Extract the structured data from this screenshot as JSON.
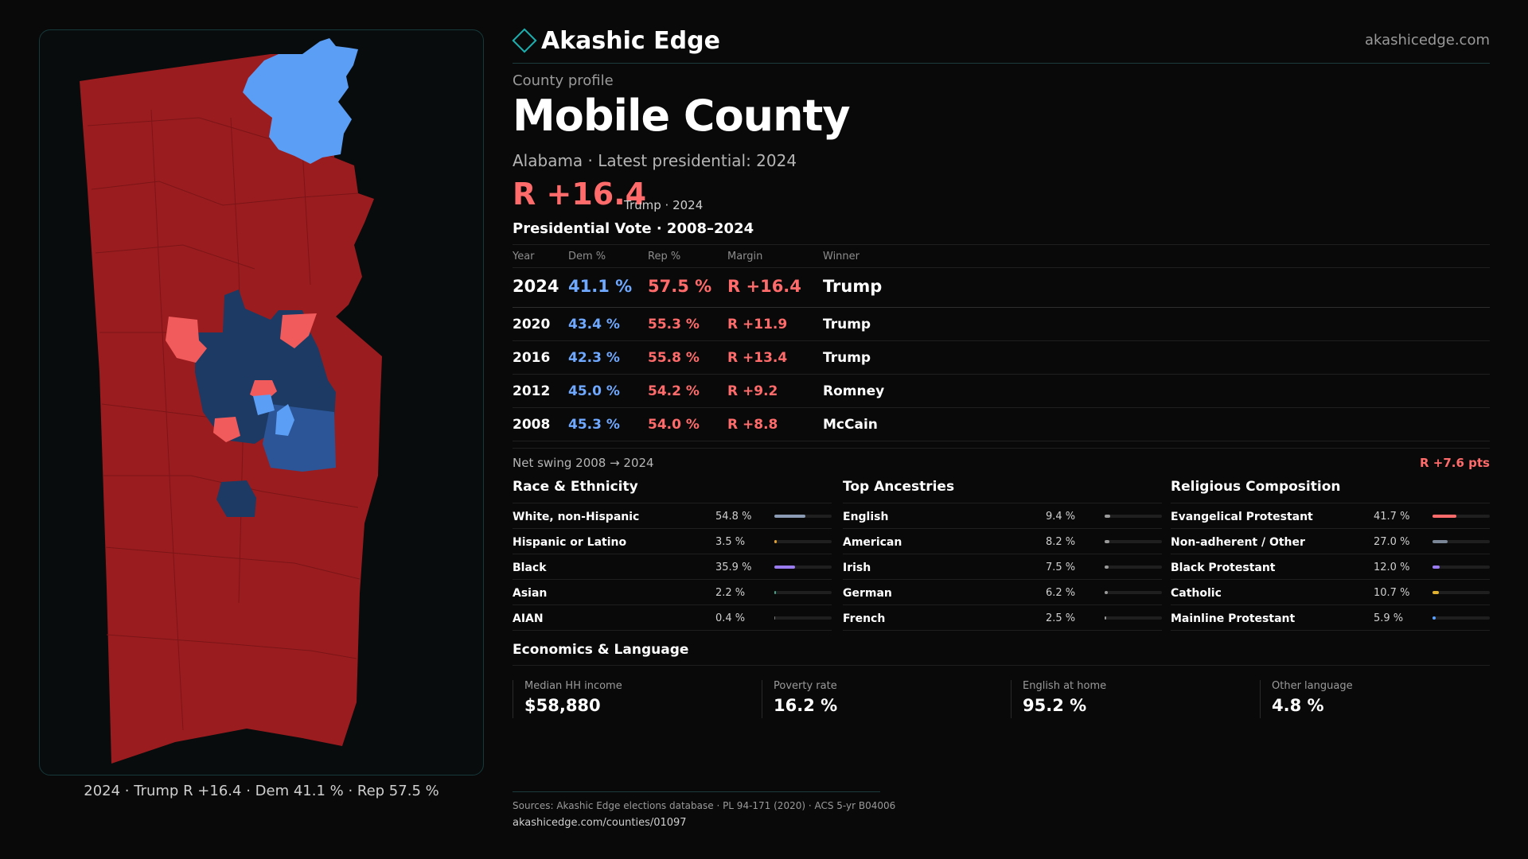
{
  "brand": {
    "name": "Akashic Edge",
    "url": "akashicedge.com"
  },
  "profile": {
    "eyebrow": "County profile",
    "title": "Mobile County",
    "subtitle": "Alabama · Latest presidential: 2024",
    "margin": "R +16.4",
    "margin_note": "Trump · 2024"
  },
  "vote": {
    "section_title": "Presidential Vote · 2008–2024",
    "headers": {
      "year": "Year",
      "dem": "Dem %",
      "rep": "Rep %",
      "margin": "Margin",
      "winner": "Winner"
    },
    "rows": [
      {
        "year": "2024",
        "dem": "41.1 %",
        "rep": "57.5 %",
        "margin": "R +16.4",
        "winner": "Trump"
      },
      {
        "year": "2020",
        "dem": "43.4 %",
        "rep": "55.3 %",
        "margin": "R +11.9",
        "winner": "Trump"
      },
      {
        "year": "2016",
        "dem": "42.3 %",
        "rep": "55.8 %",
        "margin": "R +13.4",
        "winner": "Trump"
      },
      {
        "year": "2012",
        "dem": "45.0 %",
        "rep": "54.2 %",
        "margin": "R +9.2",
        "winner": "Romney"
      },
      {
        "year": "2008",
        "dem": "45.3 %",
        "rep": "54.0 %",
        "margin": "R +8.8",
        "winner": "McCain"
      }
    ],
    "swing_label": "Net swing 2008 → 2024",
    "swing_value": "R +7.6 pts"
  },
  "race": {
    "title": "Race & Ethnicity",
    "items": [
      {
        "name": "White, non-Hispanic",
        "value": "54.8 %",
        "pct": 54.8,
        "color": "#8a9bb3"
      },
      {
        "name": "Hispanic or Latino",
        "value": "3.5 %",
        "pct": 3.5,
        "color": "#e0a030"
      },
      {
        "name": "Black",
        "value": "35.9 %",
        "pct": 35.9,
        "color": "#9a7cf0"
      },
      {
        "name": "Asian",
        "value": "2.2 %",
        "pct": 2.2,
        "color": "#3fa58a"
      },
      {
        "name": "AIAN",
        "value": "0.4 %",
        "pct": 0.4,
        "color": "#777777"
      }
    ]
  },
  "ancestry": {
    "title": "Top Ancestries",
    "items": [
      {
        "name": "English",
        "value": "9.4 %",
        "pct": 9.4,
        "color": "#9a9a9a"
      },
      {
        "name": "American",
        "value": "8.2 %",
        "pct": 8.2,
        "color": "#9a9a9a"
      },
      {
        "name": "Irish",
        "value": "7.5 %",
        "pct": 7.5,
        "color": "#9a9a9a"
      },
      {
        "name": "German",
        "value": "6.2 %",
        "pct": 6.2,
        "color": "#9a9a9a"
      },
      {
        "name": "French",
        "value": "2.5 %",
        "pct": 2.5,
        "color": "#9a9a9a"
      }
    ]
  },
  "religion": {
    "title": "Religious Composition",
    "items": [
      {
        "name": "Evangelical Protestant",
        "value": "41.7 %",
        "pct": 41.7,
        "color": "#ff6b6b"
      },
      {
        "name": "Non-adherent / Other",
        "value": "27.0 %",
        "pct": 27.0,
        "color": "#7a8596"
      },
      {
        "name": "Black Protestant",
        "value": "12.0 %",
        "pct": 12.0,
        "color": "#9a7cf0"
      },
      {
        "name": "Catholic",
        "value": "10.7 %",
        "pct": 10.7,
        "color": "#e0b030"
      },
      {
        "name": "Mainline Protestant",
        "value": "5.9 %",
        "pct": 5.9,
        "color": "#5aa0ff"
      }
    ]
  },
  "econ": {
    "title": "Economics & Language",
    "cards": [
      {
        "label": "Median HH income",
        "value": "$58,880"
      },
      {
        "label": "Poverty rate",
        "value": "16.2 %"
      },
      {
        "label": "English at home",
        "value": "95.2 %"
      },
      {
        "label": "Other language",
        "value": "4.8 %"
      }
    ]
  },
  "map": {
    "caption": "2024 · Trump R +16.4 · Dem 41.1 % · Rep 57.5 %",
    "colors": {
      "strong_rep": "#9b1c1f",
      "lean_rep": "#f25b5b",
      "lean_dem": "#5b9ef5",
      "strong_dem": "#1c3a63",
      "mid_dem": "#2b5596"
    }
  },
  "sources": {
    "text": "Sources: Akashic Edge elections database · PL 94-171 (2020) · ACS 5-yr B04006",
    "url": "akashicedge.com/counties/01097"
  }
}
